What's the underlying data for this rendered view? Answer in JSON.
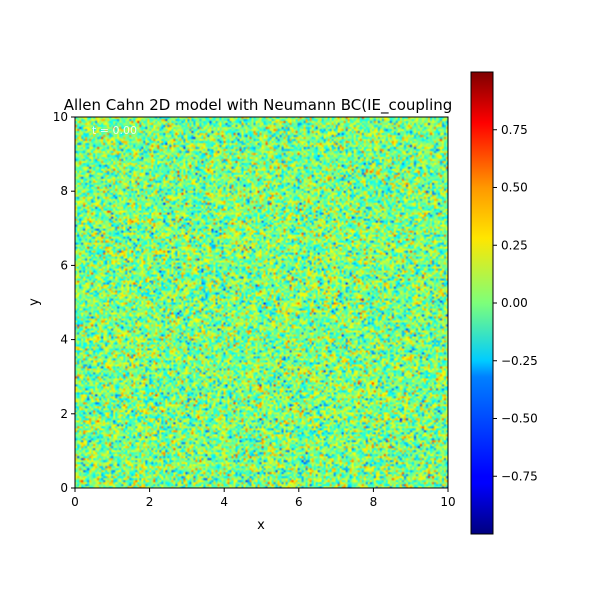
{
  "chart_data": {
    "type": "heatmap",
    "title": "Allen Cahn 2D model with Neumann BC(IE_coupling",
    "time_label": "t = 0.00",
    "xlabel": "x",
    "ylabel": "y",
    "xlim": [
      0,
      10
    ],
    "ylim": [
      0,
      10
    ],
    "x_ticks": [
      "0",
      "2",
      "4",
      "6",
      "8",
      "10"
    ],
    "y_ticks": [
      "0",
      "2",
      "4",
      "6",
      "8",
      "10"
    ],
    "colormap": "jet",
    "colorbar": {
      "range": [
        -1,
        1
      ],
      "ticks": [
        "−0.75",
        "−0.50",
        "−0.25",
        "0.00",
        "0.25",
        "0.50",
        "0.75"
      ],
      "tick_values": [
        -0.75,
        -0.5,
        -0.25,
        0,
        0.25,
        0.5,
        0.75
      ]
    },
    "field": {
      "description_values": "random noise initial condition",
      "value_range": [
        -1,
        1
      ],
      "mean": 0.0
    }
  }
}
